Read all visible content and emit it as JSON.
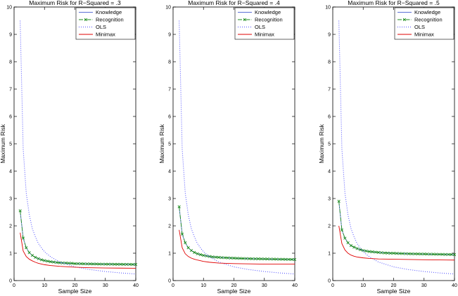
{
  "chart_data": [
    {
      "type": "line",
      "title": "Maximum Risk for R−Squared = .3",
      "xlabel": "Sample Size",
      "ylabel": "Maximum Risk",
      "xlim": [
        0,
        40
      ],
      "ylim": [
        0,
        10
      ],
      "xticks": [
        0,
        10,
        20,
        30,
        40
      ],
      "yticks": [
        0,
        1,
        2,
        3,
        4,
        5,
        6,
        7,
        8,
        9,
        10
      ],
      "legend_position": "top-right",
      "series": [
        {
          "name": "Knowledge",
          "color": "#5a6fd6",
          "style": "solid",
          "marker": "none",
          "x": [
            2,
            3,
            4,
            5,
            6,
            7,
            8,
            10,
            12,
            15,
            20,
            25,
            30,
            35,
            40
          ],
          "y": [
            2.55,
            1.55,
            1.2,
            1.02,
            0.92,
            0.85,
            0.8,
            0.73,
            0.69,
            0.65,
            0.62,
            0.61,
            0.6,
            0.595,
            0.59
          ]
        },
        {
          "name": "Recognition",
          "color": "#1e8c1e",
          "style": "dashdot",
          "marker": "x",
          "x": [
            2,
            3,
            4,
            5,
            6,
            7,
            8,
            9,
            10,
            11,
            12,
            13,
            14,
            15,
            16,
            17,
            18,
            19,
            20,
            21,
            22,
            23,
            24,
            25,
            26,
            27,
            28,
            29,
            30,
            31,
            32,
            33,
            34,
            35,
            36,
            37,
            38,
            39,
            40
          ],
          "y": [
            2.55,
            1.55,
            1.2,
            1.02,
            0.92,
            0.85,
            0.8,
            0.76,
            0.73,
            0.71,
            0.69,
            0.675,
            0.66,
            0.65,
            0.645,
            0.64,
            0.635,
            0.63,
            0.62,
            0.618,
            0.615,
            0.612,
            0.61,
            0.61,
            0.607,
            0.605,
            0.603,
            0.601,
            0.6,
            0.599,
            0.598,
            0.597,
            0.596,
            0.595,
            0.594,
            0.593,
            0.592,
            0.591,
            0.59
          ]
        },
        {
          "name": "OLS",
          "color": "#4a4aff",
          "style": "dotted",
          "marker": "none",
          "x": [
            2,
            3,
            4,
            5,
            6,
            7,
            8,
            10,
            12,
            15,
            20,
            25,
            30,
            35,
            40
          ],
          "y": [
            9.5,
            4.8,
            3.2,
            2.4,
            1.9,
            1.6,
            1.35,
            1.05,
            0.87,
            0.68,
            0.5,
            0.4,
            0.33,
            0.28,
            0.24
          ]
        },
        {
          "name": "Minimax",
          "color": "#e00000",
          "style": "solid",
          "marker": "none",
          "x": [
            2,
            3,
            4,
            5,
            6,
            7,
            8,
            10,
            12,
            15,
            20,
            25,
            30,
            35,
            40
          ],
          "y": [
            1.75,
            1.08,
            0.88,
            0.78,
            0.72,
            0.67,
            0.63,
            0.58,
            0.55,
            0.52,
            0.49,
            0.47,
            0.46,
            0.455,
            0.45
          ]
        }
      ]
    },
    {
      "type": "line",
      "title": "Maximum Risk for R−Squared = .4",
      "xlabel": "Sample Size",
      "ylabel": "Maximum Risk",
      "xlim": [
        0,
        40
      ],
      "ylim": [
        0,
        10
      ],
      "xticks": [
        0,
        10,
        20,
        30,
        40
      ],
      "yticks": [
        0,
        1,
        2,
        3,
        4,
        5,
        6,
        7,
        8,
        9,
        10
      ],
      "legend_position": "top-right",
      "series": [
        {
          "name": "Knowledge",
          "color": "#5a6fd6",
          "style": "solid",
          "marker": "none",
          "x": [
            2,
            3,
            4,
            5,
            6,
            7,
            8,
            10,
            12,
            15,
            20,
            25,
            30,
            35,
            40
          ],
          "y": [
            2.7,
            1.7,
            1.38,
            1.2,
            1.1,
            1.03,
            0.98,
            0.92,
            0.88,
            0.85,
            0.82,
            0.8,
            0.79,
            0.78,
            0.77
          ]
        },
        {
          "name": "Recognition",
          "color": "#1e8c1e",
          "style": "dashdot",
          "marker": "x",
          "x": [
            2,
            3,
            4,
            5,
            6,
            7,
            8,
            9,
            10,
            11,
            12,
            13,
            14,
            15,
            16,
            17,
            18,
            19,
            20,
            21,
            22,
            23,
            24,
            25,
            26,
            27,
            28,
            29,
            30,
            31,
            32,
            33,
            34,
            35,
            36,
            37,
            38,
            39,
            40
          ],
          "y": [
            2.7,
            1.7,
            1.38,
            1.2,
            1.1,
            1.03,
            0.98,
            0.95,
            0.92,
            0.9,
            0.88,
            0.865,
            0.855,
            0.85,
            0.84,
            0.835,
            0.83,
            0.825,
            0.82,
            0.815,
            0.812,
            0.808,
            0.805,
            0.8,
            0.798,
            0.796,
            0.794,
            0.792,
            0.79,
            0.788,
            0.786,
            0.784,
            0.782,
            0.78,
            0.778,
            0.776,
            0.774,
            0.772,
            0.77
          ]
        },
        {
          "name": "OLS",
          "color": "#4a4aff",
          "style": "dotted",
          "marker": "none",
          "x": [
            2,
            3,
            4,
            5,
            6,
            7,
            8,
            10,
            12,
            15,
            20,
            25,
            30,
            35,
            40
          ],
          "y": [
            9.5,
            4.8,
            3.2,
            2.4,
            1.9,
            1.6,
            1.35,
            1.05,
            0.87,
            0.68,
            0.5,
            0.4,
            0.33,
            0.28,
            0.24
          ]
        },
        {
          "name": "Minimax",
          "color": "#e00000",
          "style": "solid",
          "marker": "none",
          "x": [
            2,
            3,
            4,
            5,
            6,
            7,
            8,
            10,
            12,
            15,
            20,
            25,
            30,
            35,
            40
          ],
          "y": [
            1.85,
            1.2,
            0.98,
            0.88,
            0.82,
            0.78,
            0.75,
            0.7,
            0.67,
            0.64,
            0.62,
            0.61,
            0.6,
            0.6,
            0.6
          ]
        }
      ]
    },
    {
      "type": "line",
      "title": "Maximum Risk for R−Squared = .5",
      "xlabel": "Sample Size",
      "ylabel": "Maximum Risk",
      "xlim": [
        0,
        40
      ],
      "ylim": [
        0,
        10
      ],
      "xticks": [
        0,
        10,
        20,
        30,
        40
      ],
      "yticks": [
        0,
        1,
        2,
        3,
        4,
        5,
        6,
        7,
        8,
        9,
        10
      ],
      "legend_position": "top-right",
      "series": [
        {
          "name": "Knowledge",
          "color": "#5a6fd6",
          "style": "solid",
          "marker": "none",
          "x": [
            2,
            3,
            4,
            5,
            6,
            7,
            8,
            10,
            12,
            15,
            20,
            25,
            30,
            35,
            40
          ],
          "y": [
            2.9,
            1.85,
            1.55,
            1.38,
            1.28,
            1.22,
            1.17,
            1.1,
            1.06,
            1.03,
            1.0,
            0.98,
            0.97,
            0.96,
            0.95
          ]
        },
        {
          "name": "Recognition",
          "color": "#1e8c1e",
          "style": "dashdot",
          "marker": "x",
          "x": [
            2,
            3,
            4,
            5,
            6,
            7,
            8,
            9,
            10,
            11,
            12,
            13,
            14,
            15,
            16,
            17,
            18,
            19,
            20,
            21,
            22,
            23,
            24,
            25,
            26,
            27,
            28,
            29,
            30,
            31,
            32,
            33,
            34,
            35,
            36,
            37,
            38,
            39,
            40
          ],
          "y": [
            2.9,
            1.85,
            1.55,
            1.38,
            1.28,
            1.22,
            1.17,
            1.13,
            1.1,
            1.08,
            1.06,
            1.05,
            1.04,
            1.03,
            1.02,
            1.01,
            1.005,
            1.0,
            1.0,
            0.995,
            0.99,
            0.988,
            0.985,
            0.98,
            0.978,
            0.976,
            0.974,
            0.972,
            0.97,
            0.968,
            0.966,
            0.964,
            0.962,
            0.96,
            0.958,
            0.956,
            0.954,
            0.952,
            0.95
          ]
        },
        {
          "name": "OLS",
          "color": "#4a4aff",
          "style": "dotted",
          "marker": "none",
          "x": [
            2,
            3,
            4,
            5,
            6,
            7,
            8,
            10,
            12,
            15,
            20,
            25,
            30,
            35,
            40
          ],
          "y": [
            9.5,
            4.8,
            3.2,
            2.4,
            1.9,
            1.6,
            1.35,
            1.05,
            0.87,
            0.68,
            0.5,
            0.4,
            0.33,
            0.28,
            0.24
          ]
        },
        {
          "name": "Minimax",
          "color": "#e00000",
          "style": "solid",
          "marker": "none",
          "x": [
            2,
            3,
            4,
            5,
            6,
            7,
            8,
            10,
            12,
            15,
            20,
            25,
            30,
            35,
            40
          ],
          "y": [
            2.0,
            1.35,
            1.12,
            1.0,
            0.93,
            0.89,
            0.86,
            0.83,
            0.81,
            0.79,
            0.78,
            0.77,
            0.76,
            0.755,
            0.75
          ]
        }
      ]
    }
  ]
}
